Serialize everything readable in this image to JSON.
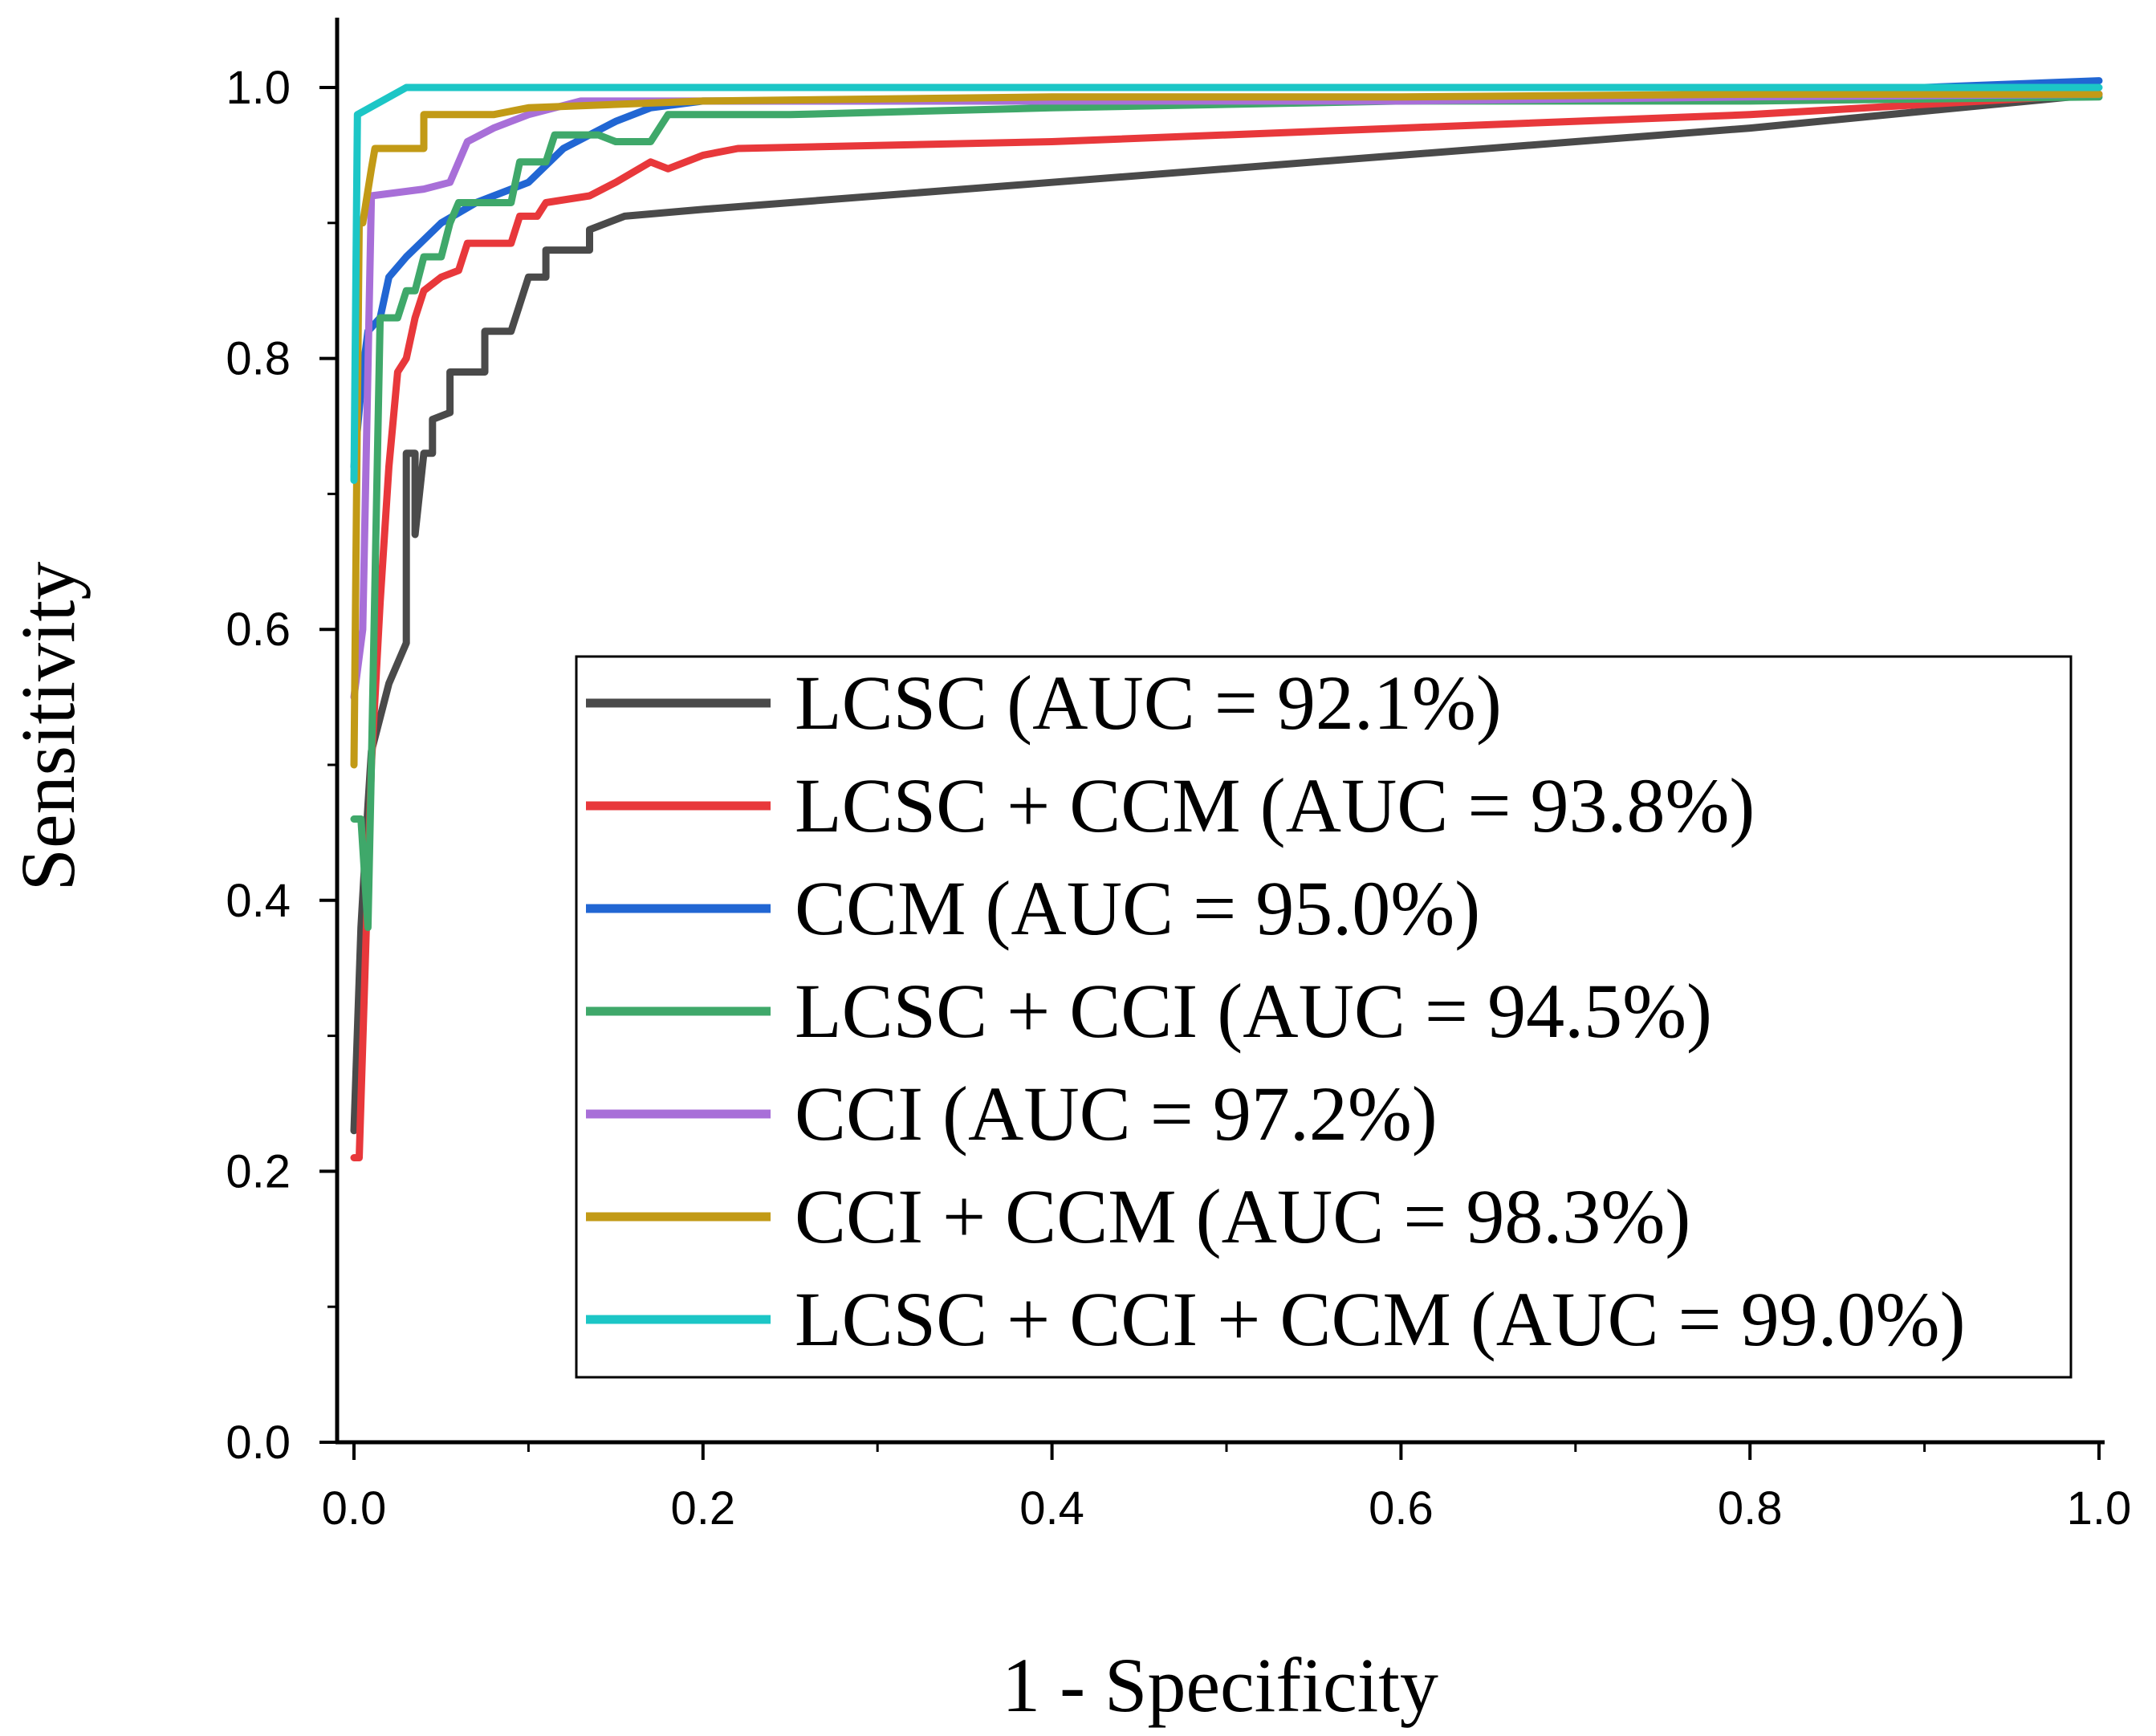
{
  "chart_data": {
    "type": "line",
    "title": "",
    "xlabel": "1 - Specificity",
    "ylabel": "Sensitivity",
    "xlim": [
      -0.01,
      1.0
    ],
    "ylim": [
      -0.01,
      1.05
    ],
    "xticks": [
      "0.0",
      "0.2",
      "0.4",
      "0.6",
      "0.8",
      "1.0"
    ],
    "yticks": [
      "0.0",
      "0.2",
      "0.4",
      "0.6",
      "0.8",
      "1.0"
    ],
    "grid": false,
    "legend_position": "lower-right",
    "series": [
      {
        "name": "LCSC (AUC = 92.1%)",
        "color": "#4a4a4a",
        "points": [
          [
            0,
            0.23
          ],
          [
            0.004,
            0.38
          ],
          [
            0.008,
            0.47
          ],
          [
            0.01,
            0.51
          ],
          [
            0.02,
            0.56
          ],
          [
            0.03,
            0.59
          ],
          [
            0.03,
            0.73
          ],
          [
            0.035,
            0.73
          ],
          [
            0.035,
            0.67
          ],
          [
            0.04,
            0.73
          ],
          [
            0.045,
            0.73
          ],
          [
            0.045,
            0.755
          ],
          [
            0.055,
            0.76
          ],
          [
            0.055,
            0.79
          ],
          [
            0.065,
            0.79
          ],
          [
            0.075,
            0.79
          ],
          [
            0.075,
            0.82
          ],
          [
            0.09,
            0.82
          ],
          [
            0.1,
            0.86
          ],
          [
            0.11,
            0.86
          ],
          [
            0.11,
            0.88
          ],
          [
            0.13,
            0.88
          ],
          [
            0.135,
            0.88
          ],
          [
            0.135,
            0.895
          ],
          [
            0.155,
            0.905
          ],
          [
            0.2,
            0.91
          ],
          [
            0.4,
            0.93
          ],
          [
            0.6,
            0.95
          ],
          [
            0.8,
            0.97
          ],
          [
            1.0,
            0.995
          ]
        ]
      },
      {
        "name": "LCSC + CCM (AUC = 93.8%)",
        "color": "#e8383b",
        "points": [
          [
            0,
            0.21
          ],
          [
            0.003,
            0.21
          ],
          [
            0.01,
            0.5
          ],
          [
            0.015,
            0.62
          ],
          [
            0.02,
            0.72
          ],
          [
            0.025,
            0.79
          ],
          [
            0.03,
            0.8
          ],
          [
            0.035,
            0.83
          ],
          [
            0.04,
            0.85
          ],
          [
            0.05,
            0.86
          ],
          [
            0.06,
            0.865
          ],
          [
            0.065,
            0.885
          ],
          [
            0.09,
            0.885
          ],
          [
            0.095,
            0.905
          ],
          [
            0.105,
            0.905
          ],
          [
            0.11,
            0.915
          ],
          [
            0.135,
            0.92
          ],
          [
            0.15,
            0.93
          ],
          [
            0.17,
            0.945
          ],
          [
            0.18,
            0.94
          ],
          [
            0.2,
            0.95
          ],
          [
            0.22,
            0.955
          ],
          [
            0.4,
            0.96
          ],
          [
            0.6,
            0.97
          ],
          [
            0.8,
            0.98
          ],
          [
            1.0,
            0.995
          ]
        ]
      },
      {
        "name": "CCM (AUC = 95.0%)",
        "color": "#2166d3",
        "points": [
          [
            0,
            0.72
          ],
          [
            0.005,
            0.79
          ],
          [
            0.008,
            0.82
          ],
          [
            0.015,
            0.83
          ],
          [
            0.02,
            0.86
          ],
          [
            0.03,
            0.875
          ],
          [
            0.05,
            0.9
          ],
          [
            0.07,
            0.915
          ],
          [
            0.1,
            0.93
          ],
          [
            0.12,
            0.955
          ],
          [
            0.15,
            0.975
          ],
          [
            0.17,
            0.985
          ],
          [
            0.2,
            0.99
          ],
          [
            0.4,
            0.99
          ],
          [
            0.6,
            0.99
          ],
          [
            0.8,
            0.995
          ],
          [
            1.0,
            1.005
          ]
        ]
      },
      {
        "name": "LCSC + CCI (AUC = 94.5%)",
        "color": "#3fa86a",
        "points": [
          [
            0,
            0.46
          ],
          [
            0.004,
            0.46
          ],
          [
            0.008,
            0.38
          ],
          [
            0.01,
            0.5
          ],
          [
            0.015,
            0.83
          ],
          [
            0.025,
            0.83
          ],
          [
            0.03,
            0.85
          ],
          [
            0.035,
            0.85
          ],
          [
            0.04,
            0.875
          ],
          [
            0.05,
            0.875
          ],
          [
            0.055,
            0.9
          ],
          [
            0.06,
            0.915
          ],
          [
            0.075,
            0.915
          ],
          [
            0.09,
            0.915
          ],
          [
            0.095,
            0.945
          ],
          [
            0.11,
            0.945
          ],
          [
            0.115,
            0.965
          ],
          [
            0.14,
            0.965
          ],
          [
            0.15,
            0.96
          ],
          [
            0.17,
            0.96
          ],
          [
            0.18,
            0.98
          ],
          [
            0.2,
            0.98
          ],
          [
            0.25,
            0.98
          ],
          [
            0.4,
            0.985
          ],
          [
            0.6,
            0.99
          ],
          [
            0.8,
            0.99
          ],
          [
            1.0,
            0.993
          ]
        ]
      },
      {
        "name": "CCI (AUC = 97.2%)",
        "color": "#a86fd8",
        "points": [
          [
            0,
            0.55
          ],
          [
            0.005,
            0.6
          ],
          [
            0.01,
            0.92
          ],
          [
            0.04,
            0.925
          ],
          [
            0.055,
            0.93
          ],
          [
            0.065,
            0.96
          ],
          [
            0.08,
            0.97
          ],
          [
            0.1,
            0.98
          ],
          [
            0.13,
            0.99
          ],
          [
            0.2,
            0.99
          ],
          [
            0.4,
            0.99
          ],
          [
            0.6,
            0.99
          ],
          [
            0.8,
            0.993
          ],
          [
            1.0,
            0.995
          ]
        ]
      },
      {
        "name": "CCI + CCM (AUC = 98.3%)",
        "color": "#c29a16",
        "points": [
          [
            0,
            0.5
          ],
          [
            0.003,
            0.9
          ],
          [
            0.005,
            0.9
          ],
          [
            0.01,
            0.94
          ],
          [
            0.012,
            0.955
          ],
          [
            0.04,
            0.955
          ],
          [
            0.04,
            0.98
          ],
          [
            0.06,
            0.98
          ],
          [
            0.08,
            0.98
          ],
          [
            0.1,
            0.985
          ],
          [
            0.2,
            0.99
          ],
          [
            0.4,
            0.993
          ],
          [
            0.6,
            0.993
          ],
          [
            0.8,
            0.995
          ],
          [
            1.0,
            0.995
          ]
        ]
      },
      {
        "name": "LCSC + CCI + CCM (AUC = 99.0%)",
        "color": "#1cc6c6",
        "points": [
          [
            0,
            0.71
          ],
          [
            0.002,
            0.98
          ],
          [
            0.03,
            1.0
          ],
          [
            0.2,
            1.0
          ],
          [
            0.4,
            1.0
          ],
          [
            0.6,
            1.0
          ],
          [
            0.8,
            1.0
          ],
          [
            1.0,
            1.0
          ]
        ]
      }
    ]
  }
}
